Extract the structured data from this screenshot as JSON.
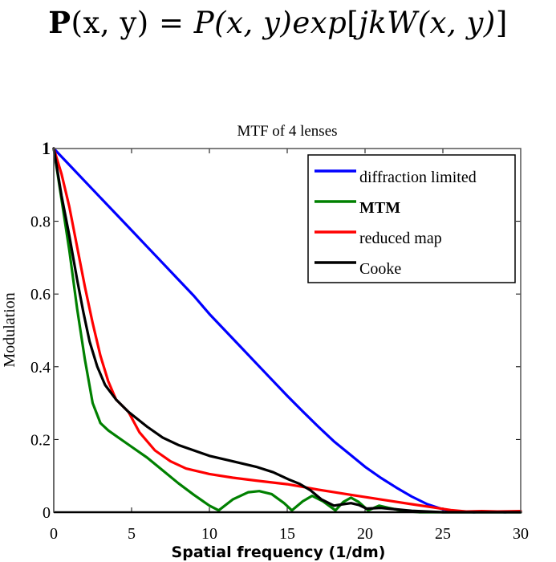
{
  "equation": {
    "lhs_bold": "P",
    "lhs_args": "(x, y)",
    "equals": "=",
    "rhs_func": "P",
    "rhs_args": "(x, y)",
    "rhs_exp": "exp",
    "rhs_bracket_open": "[",
    "rhs_inner": "jkW",
    "rhs_inner_args": "(x, y)",
    "rhs_bracket_close": "]"
  },
  "chart_data": {
    "type": "line",
    "title": "MTF of 4 lenses",
    "xlabel": "Spatial frequency (1/dm)",
    "ylabel": "Modulation",
    "xlim": [
      0,
      30
    ],
    "ylim": [
      0,
      1
    ],
    "xticks": [
      0,
      5,
      10,
      15,
      20,
      25,
      30
    ],
    "xtick_labels": [
      "0",
      "5",
      "10",
      "15",
      "20",
      "25",
      "30"
    ],
    "yticks": [
      0,
      0.2,
      0.4,
      0.6,
      0.8,
      1
    ],
    "ytick_labels": [
      "0",
      "0.2",
      "0.4",
      "0.6",
      "0.8",
      "1"
    ],
    "grid": false,
    "legend_position": "top-right",
    "series": [
      {
        "name": "diffraction limited",
        "color": "#0000ff",
        "x": [
          0,
          1,
          2,
          3,
          4,
          5,
          6,
          7,
          8,
          9,
          10,
          11,
          12,
          13,
          14,
          15,
          16,
          17,
          18,
          19,
          20,
          21,
          22,
          23,
          24,
          25,
          26,
          27,
          28,
          29,
          30
        ],
        "y": [
          1.0,
          0.955,
          0.91,
          0.865,
          0.82,
          0.775,
          0.73,
          0.685,
          0.64,
          0.595,
          0.545,
          0.5,
          0.455,
          0.41,
          0.365,
          0.32,
          0.277,
          0.235,
          0.195,
          0.16,
          0.125,
          0.095,
          0.068,
          0.043,
          0.022,
          0.008,
          0.002,
          0.0,
          0.002,
          0.0,
          0.002
        ]
      },
      {
        "name": "MTM",
        "color": "#008000",
        "x": [
          0,
          0.5,
          1.0,
          1.5,
          2.0,
          2.5,
          3.0,
          3.5,
          4.0,
          5.0,
          6.0,
          7.0,
          8.0,
          9.0,
          10.0,
          10.6,
          11.5,
          12.5,
          13.2,
          14.0,
          14.8,
          15.3,
          16.0,
          16.6,
          17.3,
          18.1,
          18.6,
          19.1,
          19.6,
          20.2,
          20.9,
          21.5,
          22.5,
          23.5,
          30
        ],
        "y": [
          1.0,
          0.86,
          0.72,
          0.56,
          0.42,
          0.3,
          0.245,
          0.225,
          0.21,
          0.18,
          0.15,
          0.115,
          0.08,
          0.048,
          0.018,
          0.005,
          0.035,
          0.055,
          0.058,
          0.05,
          0.025,
          0.005,
          0.03,
          0.045,
          0.03,
          0.005,
          0.028,
          0.04,
          0.028,
          0.005,
          0.018,
          0.012,
          0.003,
          0.0,
          0.0
        ]
      },
      {
        "name": "reduced map",
        "color": "#ff0000",
        "x": [
          0,
          0.5,
          1.0,
          1.5,
          2.0,
          2.5,
          3.0,
          3.5,
          4.0,
          4.8,
          5.5,
          6.5,
          7.5,
          8.5,
          10.0,
          11.5,
          13.0,
          15.0,
          17.0,
          19.2,
          21.0,
          23.0,
          24.4,
          25.5,
          26.5,
          27.5,
          28.5,
          30
        ],
        "y": [
          1.0,
          0.93,
          0.84,
          0.73,
          0.62,
          0.52,
          0.43,
          0.36,
          0.31,
          0.276,
          0.22,
          0.17,
          0.14,
          0.12,
          0.105,
          0.095,
          0.087,
          0.077,
          0.062,
          0.047,
          0.035,
          0.022,
          0.013,
          0.006,
          0.002,
          0.003,
          0.002,
          0.003
        ]
      },
      {
        "name": "Cooke",
        "color": "#000000",
        "x": [
          0,
          0.5,
          1.0,
          1.5,
          1.9,
          2.3,
          2.8,
          3.3,
          4.0,
          4.8,
          6.0,
          7.0,
          8.0,
          9.0,
          10.0,
          11.5,
          13.0,
          14.1,
          15.1,
          15.8,
          16.5,
          17.2,
          18.0,
          18.6,
          19.1,
          19.6,
          20.1,
          21.0,
          22.0,
          23.0,
          24.0,
          25.0,
          30
        ],
        "y": [
          1.0,
          0.87,
          0.76,
          0.64,
          0.55,
          0.47,
          0.4,
          0.35,
          0.31,
          0.276,
          0.235,
          0.205,
          0.185,
          0.17,
          0.155,
          0.14,
          0.125,
          0.11,
          0.09,
          0.078,
          0.06,
          0.035,
          0.018,
          0.022,
          0.025,
          0.02,
          0.01,
          0.012,
          0.008,
          0.004,
          0.002,
          0.0,
          0.0
        ]
      }
    ]
  }
}
